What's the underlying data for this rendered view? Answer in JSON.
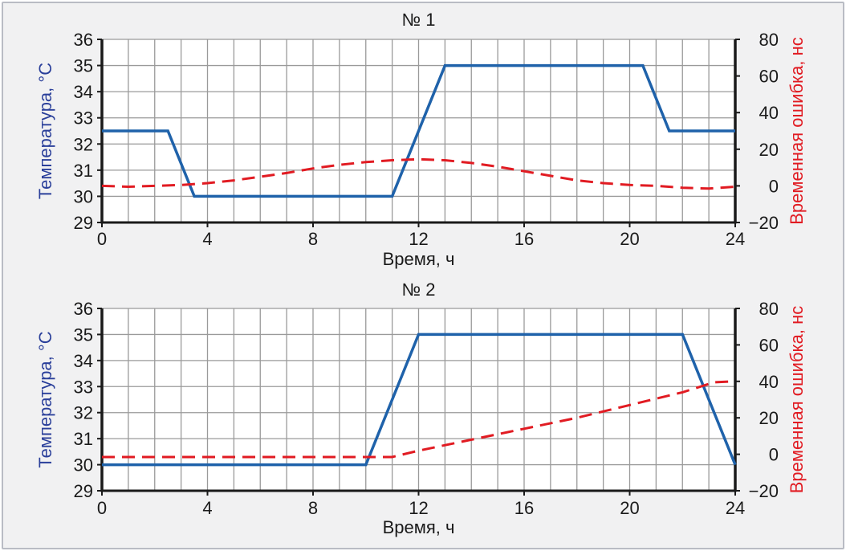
{
  "colors": {
    "temperature": "#1f62aa",
    "time_error": "#e11b22",
    "left_axis_label": "#2a3f9a",
    "right_axis_label": "#e11b22",
    "panel_background": "#f1f1f2",
    "plot_background": "#ffffff",
    "grid": "#9a9a9a"
  },
  "chart_data": [
    {
      "type": "line",
      "title": "№ 1",
      "xlabel": "Время, ч",
      "ylabel_left": "Температура, °C",
      "ylabel_right": "Временная ошибка, нс",
      "xlim": [
        0,
        24
      ],
      "ylim_left": [
        29,
        36
      ],
      "ylim_right": [
        -20,
        80
      ],
      "x_ticks": [
        0,
        4,
        8,
        12,
        16,
        20,
        24
      ],
      "y_left_ticks": [
        29,
        30,
        31,
        32,
        33,
        34,
        35,
        36
      ],
      "y_right_ticks": [
        "−20",
        "0",
        "20",
        "40",
        "60",
        "80"
      ],
      "grid": true,
      "series": [
        {
          "axis": "left",
          "style": "solid",
          "x": [
            0,
            2.5,
            3.5,
            11,
            13,
            20.5,
            21.5,
            24
          ],
          "y": [
            32.5,
            32.5,
            30,
            30,
            35,
            35,
            32.5,
            32.5
          ]
        },
        {
          "axis": "right",
          "style": "dashed",
          "x": [
            0,
            1,
            2,
            3,
            4,
            5,
            6,
            7,
            8,
            9,
            10,
            11,
            12,
            13,
            14,
            15,
            16,
            17,
            18,
            19,
            20,
            21,
            22,
            23,
            24
          ],
          "y": [
            0,
            -0.5,
            0,
            0.5,
            1.5,
            3,
            5,
            7,
            9.5,
            11.5,
            13,
            14,
            14.5,
            14,
            12.5,
            10.5,
            8,
            5.5,
            3,
            1.5,
            0.5,
            0,
            -1,
            -1.5,
            -0.5
          ]
        }
      ]
    },
    {
      "type": "line",
      "title": "№ 2",
      "xlabel": "Время, ч",
      "ylabel_left": "Температура, °C",
      "ylabel_right": "Временная ошибка, нс",
      "xlim": [
        0,
        24
      ],
      "ylim_left": [
        29,
        36
      ],
      "ylim_right": [
        -20,
        80
      ],
      "x_ticks": [
        0,
        4,
        8,
        12,
        16,
        20,
        24
      ],
      "y_left_ticks": [
        29,
        30,
        31,
        32,
        33,
        34,
        35,
        36
      ],
      "y_right_ticks": [
        "−20",
        "0",
        "20",
        "40",
        "60",
        "80"
      ],
      "grid": true,
      "series": [
        {
          "axis": "left",
          "style": "solid",
          "x": [
            0,
            10,
            12,
            22,
            24
          ],
          "y": [
            30,
            30,
            35,
            35,
            30
          ]
        },
        {
          "axis": "right",
          "style": "dashed",
          "x": [
            0,
            11,
            12,
            14,
            16,
            18,
            20,
            22,
            23.2,
            24
          ],
          "y": [
            -1.5,
            -1.5,
            2,
            8,
            14,
            20,
            27,
            34,
            39.5,
            40
          ]
        }
      ]
    }
  ]
}
